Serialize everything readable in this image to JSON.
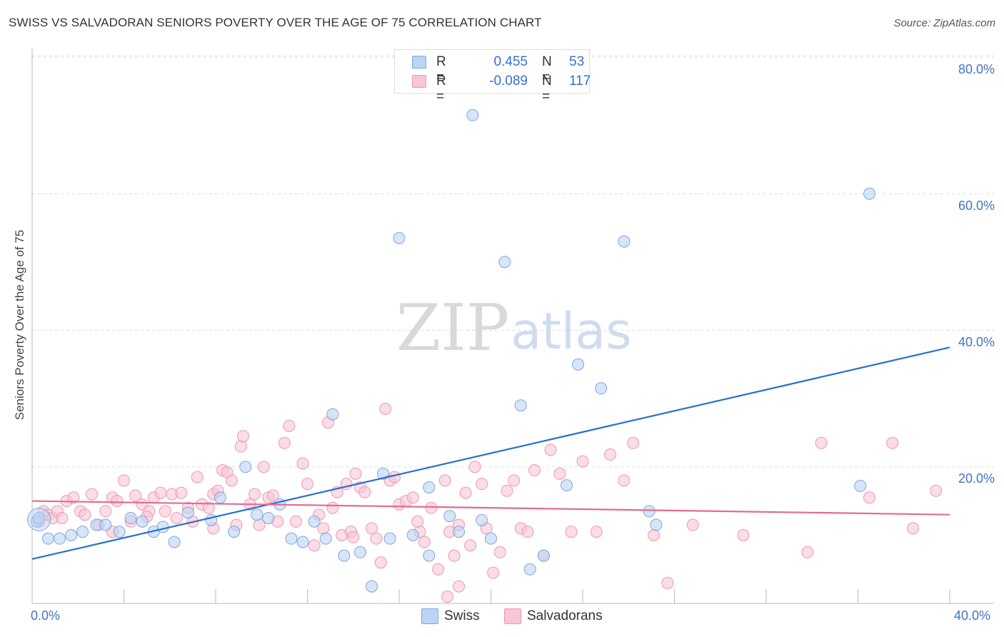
{
  "header": {
    "title": "SWISS VS SALVADORAN SENIORS POVERTY OVER THE AGE OF 75 CORRELATION CHART",
    "source": "Source: ZipAtlas.com"
  },
  "watermark": {
    "zip": "ZIP",
    "atlas": "atlas"
  },
  "legend": {
    "rows": [
      {
        "r_label": "R =",
        "r_value": "0.455",
        "n_label": "N =",
        "n_value": "53",
        "color": "#a9c7f0"
      },
      {
        "r_label": "R =",
        "r_value": "-0.089",
        "n_label": "N =",
        "n_value": "117",
        "color": "#f5b8cb"
      }
    ]
  },
  "bottom_legend": {
    "swiss": "Swiss",
    "salvadorans": "Salvadorans"
  },
  "colors": {
    "swiss_fill": "#bcd4f3",
    "swiss_stroke": "#7fa6de",
    "swiss_line": "#2a6fcf",
    "salv_fill": "#f8c6d5",
    "salv_stroke": "#ec98b2",
    "salv_line": "#e46a93",
    "grid": "#dddddd",
    "axis_text": "#4472c4"
  },
  "chart_data": {
    "type": "scatter",
    "title": "SWISS VS SALVADORAN SENIORS POVERTY OVER THE AGE OF 75 CORRELATION CHART",
    "xlabel": "",
    "ylabel": "Seniors Poverty Over the Age of 75",
    "xlim": [
      0,
      40
    ],
    "ylim": [
      0,
      80
    ],
    "x_ticks_labels": [
      "0.0%",
      "40.0%"
    ],
    "y_ticks_labels": [
      "20.0%",
      "40.0%",
      "60.0%",
      "80.0%"
    ],
    "y_ticks": [
      20,
      40,
      60,
      80
    ],
    "grid": "horizontal dashed",
    "legend_placement": "top-center",
    "series": [
      {
        "name": "Swiss",
        "R": 0.455,
        "N": 53,
        "trend": [
          [
            0,
            6.5
          ],
          [
            40,
            37.5
          ]
        ],
        "points": [
          [
            0.2,
            12
          ],
          [
            0.7,
            9.5
          ],
          [
            1.2,
            9.5
          ],
          [
            1.7,
            10
          ],
          [
            2.2,
            10.5
          ],
          [
            2.8,
            11.5
          ],
          [
            3.2,
            11.5
          ],
          [
            3.8,
            10.5
          ],
          [
            4.3,
            12.5
          ],
          [
            4.8,
            12
          ],
          [
            5.3,
            10.5
          ],
          [
            5.7,
            11.2
          ],
          [
            6.2,
            9
          ],
          [
            6.8,
            13.3
          ],
          [
            7.8,
            12.2
          ],
          [
            8.2,
            15.5
          ],
          [
            8.8,
            10.5
          ],
          [
            9.3,
            20
          ],
          [
            9.8,
            13
          ],
          [
            10.3,
            12.5
          ],
          [
            10.8,
            14.5
          ],
          [
            11.3,
            9.5
          ],
          [
            11.8,
            9
          ],
          [
            12.3,
            12
          ],
          [
            12.8,
            9.5
          ],
          [
            13.1,
            27.7
          ],
          [
            13.6,
            7
          ],
          [
            14.3,
            7.5
          ],
          [
            14.8,
            2.5
          ],
          [
            15.3,
            19
          ],
          [
            15.6,
            9.5
          ],
          [
            16.0,
            53.5
          ],
          [
            16.6,
            10
          ],
          [
            17.3,
            7
          ],
          [
            17.3,
            17
          ],
          [
            18.2,
            12.8
          ],
          [
            18.6,
            10.5
          ],
          [
            19.2,
            71.5
          ],
          [
            19.6,
            12.2
          ],
          [
            20.0,
            9.5
          ],
          [
            20.6,
            50
          ],
          [
            21.3,
            29
          ],
          [
            21.7,
            5
          ],
          [
            22.3,
            7
          ],
          [
            23.3,
            17.3
          ],
          [
            23.8,
            35
          ],
          [
            24.8,
            31.5
          ],
          [
            25.8,
            53
          ],
          [
            26.9,
            13.5
          ],
          [
            27.2,
            11.5
          ],
          [
            36.1,
            17.2
          ],
          [
            36.5,
            60
          ],
          [
            0.3,
            12.5
          ]
        ]
      },
      {
        "name": "Salvadorans",
        "R": -0.089,
        "N": 117,
        "trend": [
          [
            0,
            15
          ],
          [
            40,
            13
          ]
        ],
        "points": [
          [
            0.3,
            12
          ],
          [
            0.5,
            13.5
          ],
          [
            0.7,
            13
          ],
          [
            0.9,
            12.5
          ],
          [
            1.1,
            13.5
          ],
          [
            1.3,
            12.5
          ],
          [
            1.5,
            15
          ],
          [
            1.8,
            15.5
          ],
          [
            2.1,
            13.5
          ],
          [
            2.3,
            13
          ],
          [
            2.6,
            16
          ],
          [
            2.9,
            11.5
          ],
          [
            3.2,
            13.5
          ],
          [
            3.5,
            15.5
          ],
          [
            3.7,
            15
          ],
          [
            4.0,
            18
          ],
          [
            4.3,
            12
          ],
          [
            4.5,
            15.8
          ],
          [
            4.8,
            14.5
          ],
          [
            5.1,
            13.5
          ],
          [
            5.3,
            15.5
          ],
          [
            5.6,
            16.2
          ],
          [
            5.8,
            13.5
          ],
          [
            6.1,
            16
          ],
          [
            6.3,
            12.5
          ],
          [
            6.5,
            16.2
          ],
          [
            6.8,
            14
          ],
          [
            7.0,
            12
          ],
          [
            7.2,
            18.5
          ],
          [
            7.4,
            14.5
          ],
          [
            7.7,
            14
          ],
          [
            7.9,
            16
          ],
          [
            8.1,
            16.5
          ],
          [
            8.3,
            19.5
          ],
          [
            8.5,
            19.2
          ],
          [
            8.7,
            18
          ],
          [
            8.9,
            11.5
          ],
          [
            9.1,
            23
          ],
          [
            9.2,
            24.5
          ],
          [
            9.5,
            14.5
          ],
          [
            9.7,
            16
          ],
          [
            9.9,
            11.5
          ],
          [
            10.1,
            20
          ],
          [
            10.3,
            15.5
          ],
          [
            10.5,
            15.8
          ],
          [
            10.7,
            12
          ],
          [
            11.0,
            23.5
          ],
          [
            11.2,
            26
          ],
          [
            11.5,
            12
          ],
          [
            11.8,
            20.5
          ],
          [
            12.0,
            17.5
          ],
          [
            12.3,
            8.5
          ],
          [
            12.5,
            13
          ],
          [
            12.7,
            11
          ],
          [
            12.9,
            26.5
          ],
          [
            13.1,
            14
          ],
          [
            13.3,
            16.3
          ],
          [
            13.5,
            10
          ],
          [
            13.7,
            17.5
          ],
          [
            13.9,
            10.5
          ],
          [
            14.1,
            19
          ],
          [
            14.3,
            17
          ],
          [
            14.5,
            16.3
          ],
          [
            14.8,
            11
          ],
          [
            15.0,
            9.5
          ],
          [
            15.2,
            6
          ],
          [
            15.4,
            28.5
          ],
          [
            15.6,
            18
          ],
          [
            15.8,
            18.5
          ],
          [
            16.0,
            14.5
          ],
          [
            16.3,
            15
          ],
          [
            16.6,
            15.5
          ],
          [
            16.9,
            10.5
          ],
          [
            17.1,
            9
          ],
          [
            17.4,
            14
          ],
          [
            17.7,
            5
          ],
          [
            18.0,
            18
          ],
          [
            18.2,
            10.5
          ],
          [
            18.4,
            7
          ],
          [
            18.6,
            11.5
          ],
          [
            18.9,
            16.2
          ],
          [
            19.1,
            8.5
          ],
          [
            19.3,
            20
          ],
          [
            19.6,
            17.5
          ],
          [
            19.8,
            11
          ],
          [
            20.1,
            4.5
          ],
          [
            20.4,
            7.5
          ],
          [
            20.7,
            16.5
          ],
          [
            21.0,
            18
          ],
          [
            21.3,
            11
          ],
          [
            21.6,
            10.5
          ],
          [
            21.9,
            19.5
          ],
          [
            22.3,
            7
          ],
          [
            22.6,
            22.5
          ],
          [
            23.0,
            19
          ],
          [
            23.5,
            10.5
          ],
          [
            24.0,
            20.8
          ],
          [
            24.6,
            10.5
          ],
          [
            25.2,
            21.8
          ],
          [
            25.8,
            18
          ],
          [
            26.2,
            23.5
          ],
          [
            27.1,
            10
          ],
          [
            27.7,
            3
          ],
          [
            28.8,
            11.5
          ],
          [
            31.0,
            10
          ],
          [
            33.8,
            7.5
          ],
          [
            34.4,
            23.5
          ],
          [
            36.5,
            15.5
          ],
          [
            37.5,
            23.5
          ],
          [
            38.4,
            11
          ],
          [
            39.4,
            16.5
          ],
          [
            18.6,
            2.5
          ],
          [
            18.1,
            1
          ],
          [
            16.8,
            12
          ],
          [
            14.0,
            9.7
          ],
          [
            7.9,
            11
          ],
          [
            5.0,
            12.7
          ],
          [
            3.5,
            10.5
          ]
        ]
      }
    ]
  }
}
